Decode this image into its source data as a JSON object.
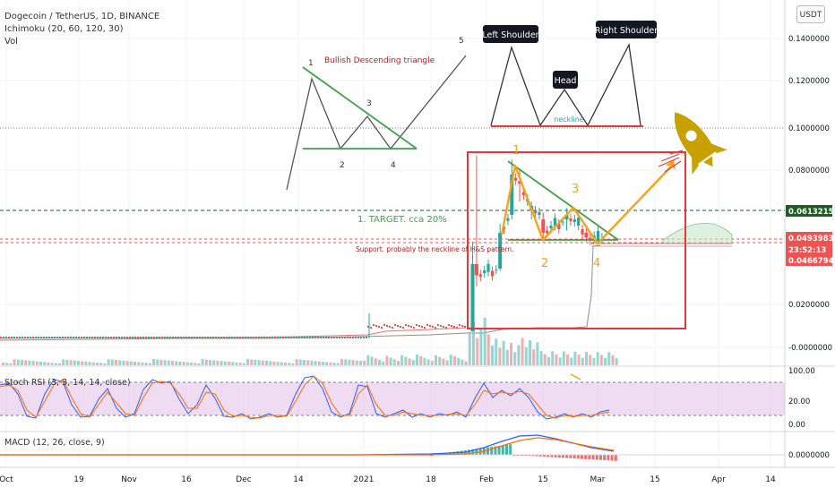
{
  "header": {
    "symbol": "Dogecoin / TetherUS, 1D, BINANCE",
    "ichimoku": "Ichimoku (20, 60, 120, 30)",
    "vol": "Vol",
    "currency_button": "USDT"
  },
  "price_axis": {
    "ticks": [
      "0.1400000",
      "0.1200000",
      "0.1000000",
      "0.0800000",
      "0.0200000",
      "-0.0000000"
    ],
    "badges": [
      {
        "label": "0.0613215",
        "color": "#1b5e20"
      },
      {
        "label": "0.0493983",
        "color": "#ef5350"
      },
      {
        "label": "23:52:13",
        "color": "#ef5350"
      },
      {
        "label": "0.0466794",
        "color": "#ef5350"
      }
    ]
  },
  "time_axis": [
    "Oct",
    "19",
    "Nov",
    "16",
    "Dec",
    "14",
    "2021",
    "18",
    "Feb",
    "15",
    "Mar",
    "15",
    "Apr",
    "14"
  ],
  "stoch": {
    "label": "Stoch RSI (3, 3, 14, 14, close)",
    "ticks": [
      "100.00",
      "20.00",
      "0.00"
    ]
  },
  "macd": {
    "label": "MACD (12, 26, close, 9)",
    "ticks": [
      "0.0000000"
    ]
  },
  "annotations": {
    "triangle_title": "Bullish Descending triangle",
    "wave_numbers": [
      "1",
      "2",
      "3",
      "4",
      "5"
    ],
    "left_shoulder": "Left Shoulder",
    "head": "Head",
    "right_shoulder": "Right Shoulder",
    "neckline": "neckline",
    "target": "1. TARGET. cca 20%",
    "support": "Support. probably the neckline of H&S pattern.",
    "pattern_numbers": [
      "1",
      "2",
      "3",
      "4"
    ]
  },
  "colors": {
    "up": "#26a69a",
    "down": "#ef5350",
    "target": "#43a047",
    "box": "#e53935",
    "orange": "#f7a21c",
    "rocket": "#c8a000"
  },
  "chart_data": {
    "type": "candlestick",
    "x_range": [
      "2020-10-01",
      "2021-04-20"
    ],
    "ylim": [
      -0.01,
      0.15
    ],
    "candles": [
      {
        "date": "2021-01-28",
        "open": 0.0075,
        "high": 0.048,
        "low": 0.0075,
        "close": 0.038
      },
      {
        "date": "2021-01-29",
        "open": 0.038,
        "high": 0.087,
        "low": 0.028,
        "close": 0.033
      },
      {
        "date": "2021-02-04",
        "open": 0.036,
        "high": 0.056,
        "low": 0.035,
        "close": 0.052
      },
      {
        "date": "2021-02-07",
        "open": 0.06,
        "high": 0.085,
        "low": 0.058,
        "close": 0.078
      },
      {
        "date": "2021-02-09",
        "open": 0.075,
        "high": 0.08,
        "low": 0.066,
        "close": 0.074
      },
      {
        "date": "2021-02-12",
        "open": 0.062,
        "high": 0.066,
        "low": 0.058,
        "close": 0.064
      },
      {
        "date": "2021-02-15",
        "open": 0.058,
        "high": 0.061,
        "low": 0.048,
        "close": 0.052
      },
      {
        "date": "2021-02-21",
        "open": 0.058,
        "high": 0.063,
        "low": 0.053,
        "close": 0.06
      },
      {
        "date": "2021-02-26",
        "open": 0.052,
        "high": 0.055,
        "low": 0.048,
        "close": 0.05
      },
      {
        "date": "2021-03-02",
        "open": 0.049,
        "high": 0.052,
        "low": 0.047,
        "close": 0.0494
      }
    ],
    "levels": {
      "target": 0.0613215,
      "last": 0.0493983,
      "support": 0.0466794,
      "neckline": 0.1
    }
  }
}
